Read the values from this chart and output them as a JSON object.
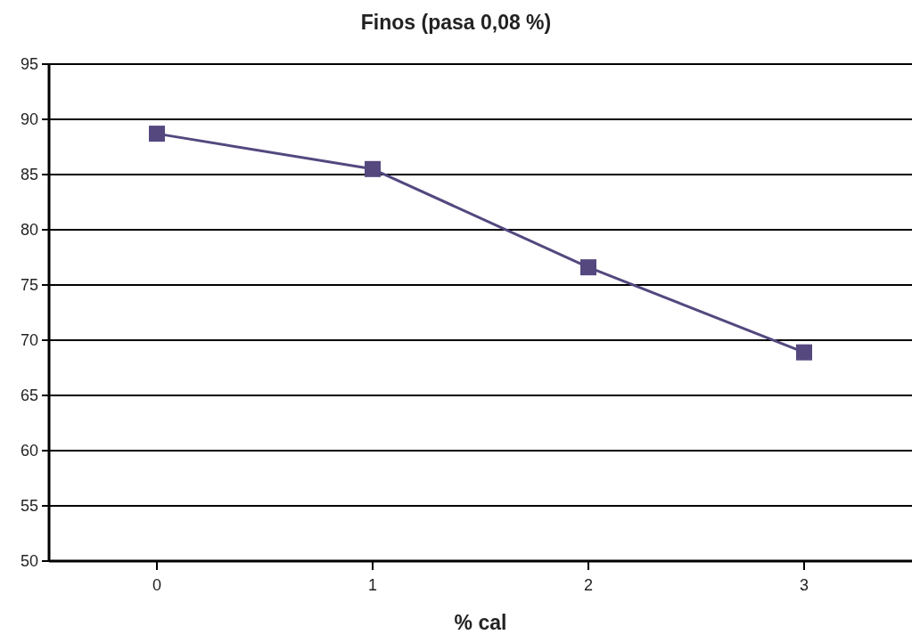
{
  "chart_data": {
    "type": "line",
    "title": "Finos (pasa 0,08 %)",
    "xlabel": "% cal",
    "categories": [
      "0",
      "1",
      "2",
      "3"
    ],
    "series": [
      {
        "color": "#54487f",
        "values": [
          88.7,
          85.5,
          76.6,
          68.9
        ]
      }
    ],
    "ylim": [
      50,
      95
    ],
    "yticks": [
      50,
      55,
      60,
      65,
      70,
      75,
      80,
      85,
      90,
      95
    ],
    "grid": "y",
    "marker": "square",
    "line_style": "solid"
  }
}
